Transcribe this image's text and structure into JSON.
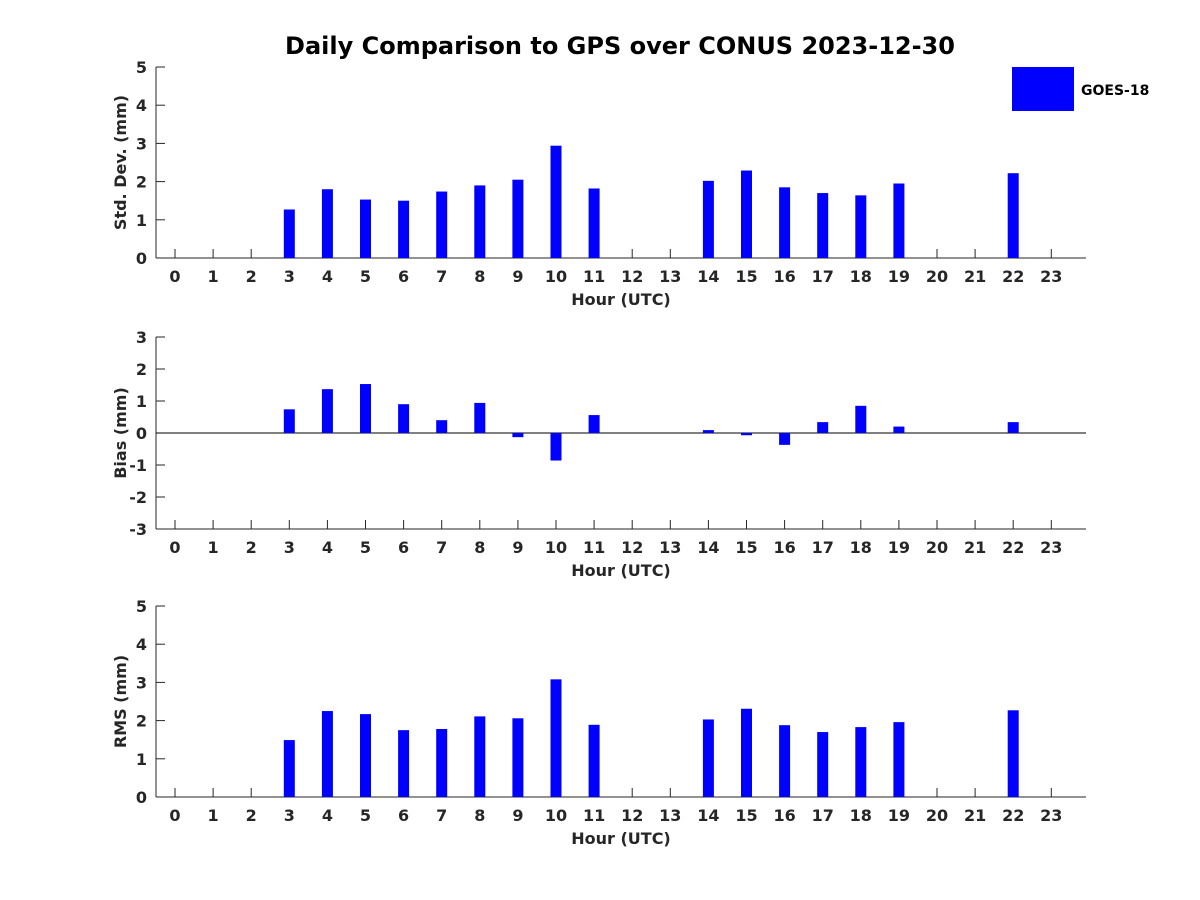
{
  "title": "Daily Comparison to GPS over CONUS 2023-12-30",
  "bar_color": "#0000ff",
  "legend": {
    "label": "GOES-18",
    "placement": "top-right"
  },
  "chart_data": [
    {
      "type": "bar",
      "xlabel": "Hour (UTC)",
      "ylabel": "Std. Dev. (mm)",
      "ylim": [
        0,
        5
      ],
      "yticks": [
        0,
        1,
        2,
        3,
        4,
        5
      ],
      "categories": [
        "0",
        "1",
        "2",
        "3",
        "4",
        "5",
        "6",
        "7",
        "8",
        "9",
        "10",
        "11",
        "12",
        "13",
        "14",
        "15",
        "16",
        "17",
        "18",
        "19",
        "20",
        "21",
        "22",
        "23"
      ],
      "series": [
        {
          "name": "GOES-18",
          "values": [
            null,
            null,
            null,
            1.27,
            1.8,
            1.53,
            1.5,
            1.74,
            1.9,
            2.05,
            2.94,
            1.82,
            null,
            null,
            2.02,
            2.29,
            1.85,
            1.7,
            1.64,
            1.95,
            null,
            null,
            2.22,
            null
          ]
        }
      ],
      "grid": false
    },
    {
      "type": "bar",
      "xlabel": "Hour (UTC)",
      "ylabel": "Bias (mm)",
      "ylim": [
        -3,
        3
      ],
      "yticks": [
        -3,
        -2,
        -1,
        0,
        1,
        2,
        3
      ],
      "categories": [
        "0",
        "1",
        "2",
        "3",
        "4",
        "5",
        "6",
        "7",
        "8",
        "9",
        "10",
        "11",
        "12",
        "13",
        "14",
        "15",
        "16",
        "17",
        "18",
        "19",
        "20",
        "21",
        "22",
        "23"
      ],
      "series": [
        {
          "name": "GOES-18",
          "values": [
            null,
            null,
            null,
            0.74,
            1.37,
            1.53,
            0.9,
            0.4,
            0.94,
            -0.13,
            -0.86,
            0.56,
            null,
            null,
            0.09,
            -0.07,
            -0.37,
            0.34,
            0.85,
            0.2,
            null,
            null,
            0.34,
            null
          ]
        }
      ],
      "zero_line": true,
      "grid": false
    },
    {
      "type": "bar",
      "xlabel": "Hour (UTC)",
      "ylabel": "RMS (mm)",
      "ylim": [
        0,
        5
      ],
      "yticks": [
        0,
        1,
        2,
        3,
        4,
        5
      ],
      "categories": [
        "0",
        "1",
        "2",
        "3",
        "4",
        "5",
        "6",
        "7",
        "8",
        "9",
        "10",
        "11",
        "12",
        "13",
        "14",
        "15",
        "16",
        "17",
        "18",
        "19",
        "20",
        "21",
        "22",
        "23"
      ],
      "series": [
        {
          "name": "GOES-18",
          "values": [
            null,
            null,
            null,
            1.49,
            2.25,
            2.17,
            1.75,
            1.78,
            2.11,
            2.06,
            3.08,
            1.89,
            null,
            null,
            2.03,
            2.31,
            1.88,
            1.7,
            1.83,
            1.96,
            null,
            null,
            2.27,
            null
          ]
        }
      ],
      "grid": false
    }
  ]
}
